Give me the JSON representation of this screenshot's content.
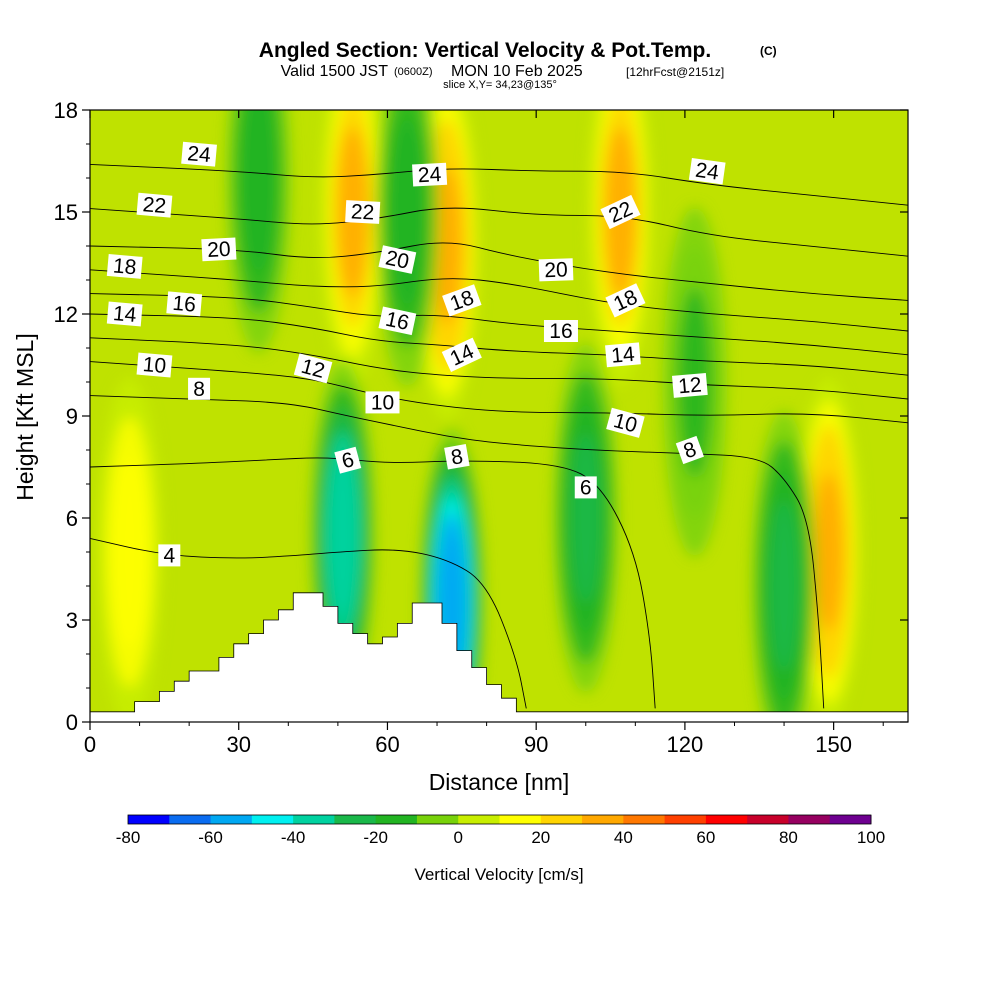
{
  "chart_data": {
    "type": "heatmap",
    "title": "Angled Section: Vertical Velocity & Pot.Temp.",
    "title_unit": "(C)",
    "subtitle_valid": "Valid 1500 JST",
    "subtitle_utc": "(0600Z)",
    "subtitle_date": "MON 10 Feb 2025",
    "subtitle_fcst": "[12hrFcst@2151z]",
    "slice_info": "slice X,Y= 34,23@135°",
    "xlabel": "Distance [nm]",
    "ylabel": "Height [Kft MSL]",
    "xlim": [
      0,
      165
    ],
    "ylim": [
      0,
      18
    ],
    "x_ticks": [
      0,
      30,
      60,
      90,
      120,
      150
    ],
    "y_ticks": [
      0,
      3,
      6,
      9,
      12,
      15,
      18
    ],
    "x_tick_labels": [
      "0",
      "30",
      "60",
      "90",
      "120",
      "150"
    ],
    "y_tick_labels": [
      "0",
      "3",
      "6",
      "9",
      "12",
      "15",
      "18"
    ],
    "colorbar": {
      "title": "Vertical Velocity [cm/s]",
      "levels": [
        -80,
        -70,
        -60,
        -50,
        -40,
        -30,
        -20,
        -10,
        0,
        10,
        20,
        30,
        40,
        50,
        60,
        70,
        80,
        90,
        100
      ],
      "tick_values": [
        -80,
        -60,
        -40,
        -20,
        0,
        20,
        40,
        60,
        80,
        100
      ],
      "tick_labels": [
        "-80",
        "-60",
        "-40",
        "-20",
        "0",
        "20",
        "40",
        "60",
        "80",
        "100"
      ],
      "colors": [
        "#0000ff",
        "#0a6cf0",
        "#00a8f2",
        "#00f0f0",
        "#00d2a0",
        "#1ab84a",
        "#22b422",
        "#78d20a",
        "#c8ee00",
        "#ffff00",
        "#ffd400",
        "#ffa800",
        "#ff7800",
        "#ff4000",
        "#ff0000",
        "#c8002a",
        "#960060",
        "#6e0090"
      ]
    },
    "velocity_features": [
      {
        "kind": "updraft",
        "x": 8,
        "y": 5,
        "value": 15
      },
      {
        "kind": "updraft",
        "x": 53,
        "y": 15,
        "value": 30
      },
      {
        "kind": "updraft",
        "x": 72,
        "y": 14,
        "value": 35
      },
      {
        "kind": "updraft",
        "x": 107,
        "y": 15,
        "value": 30
      },
      {
        "kind": "updraft",
        "x": 149,
        "y": 5,
        "value": 35
      },
      {
        "kind": "downdraft",
        "x": 34,
        "y": 16,
        "value": -20
      },
      {
        "kind": "downdraft",
        "x": 51,
        "y": 5.5,
        "value": -40
      },
      {
        "kind": "downdraft",
        "x": 73,
        "y": 3.5,
        "value": -60
      },
      {
        "kind": "downdraft",
        "x": 64,
        "y": 15,
        "value": -20
      },
      {
        "kind": "downdraft",
        "x": 100,
        "y": 6,
        "value": -25
      },
      {
        "kind": "downdraft",
        "x": 122,
        "y": 10,
        "value": -15
      },
      {
        "kind": "downdraft",
        "x": 140,
        "y": 4,
        "value": -25
      }
    ],
    "terrain": [
      [
        0,
        0.3
      ],
      [
        9,
        0.3
      ],
      [
        9,
        0.6
      ],
      [
        14,
        0.6
      ],
      [
        14,
        0.9
      ],
      [
        17,
        0.9
      ],
      [
        17,
        1.2
      ],
      [
        20,
        1.2
      ],
      [
        20,
        1.5
      ],
      [
        26,
        1.5
      ],
      [
        26,
        1.9
      ],
      [
        29,
        1.9
      ],
      [
        29,
        2.3
      ],
      [
        32,
        2.3
      ],
      [
        32,
        2.6
      ],
      [
        35,
        2.6
      ],
      [
        35,
        3.0
      ],
      [
        38,
        3.0
      ],
      [
        38,
        3.3
      ],
      [
        41,
        3.3
      ],
      [
        41,
        3.8
      ],
      [
        47,
        3.8
      ],
      [
        47,
        3.4
      ],
      [
        50,
        3.4
      ],
      [
        50,
        2.9
      ],
      [
        53,
        2.9
      ],
      [
        53,
        2.6
      ],
      [
        56,
        2.6
      ],
      [
        56,
        2.3
      ],
      [
        59,
        2.3
      ],
      [
        59,
        2.5
      ],
      [
        62,
        2.5
      ],
      [
        62,
        2.9
      ],
      [
        65,
        2.9
      ],
      [
        65,
        3.5
      ],
      [
        71,
        3.5
      ],
      [
        71,
        2.9
      ],
      [
        74,
        2.9
      ],
      [
        74,
        2.1
      ],
      [
        77,
        2.1
      ],
      [
        77,
        1.6
      ],
      [
        80,
        1.6
      ],
      [
        80,
        1.1
      ],
      [
        83,
        1.1
      ],
      [
        83,
        0.7
      ],
      [
        86,
        0.7
      ],
      [
        86,
        0.3
      ],
      [
        165,
        0.3
      ]
    ],
    "theta_isentropes": [
      {
        "value": 4,
        "points": [
          [
            0,
            5.4
          ],
          [
            15,
            4.9
          ],
          [
            30,
            4.8
          ],
          [
            42,
            4.9
          ],
          [
            50,
            5.0
          ],
          [
            62,
            5.1
          ],
          [
            72,
            4.8
          ],
          [
            80,
            4.1
          ],
          [
            86,
            1.9
          ],
          [
            88,
            0.4
          ]
        ]
      },
      {
        "value": 6,
        "points": [
          [
            0,
            7.5
          ],
          [
            20,
            7.6
          ],
          [
            35,
            7.7
          ],
          [
            48,
            7.8
          ],
          [
            60,
            7.6
          ],
          [
            75,
            7.7
          ],
          [
            95,
            7.6
          ],
          [
            103,
            7.0
          ],
          [
            110,
            5.0
          ],
          [
            113,
            2.5
          ],
          [
            114,
            0.4
          ]
        ]
      },
      {
        "value": 8,
        "points": [
          [
            0,
            9.6
          ],
          [
            20,
            9.5
          ],
          [
            40,
            9.4
          ],
          [
            52,
            9.0
          ],
          [
            62,
            8.7
          ],
          [
            72,
            8.4
          ],
          [
            82,
            8.2
          ],
          [
            100,
            8.0
          ],
          [
            120,
            7.9
          ],
          [
            135,
            7.8
          ],
          [
            140,
            7.2
          ],
          [
            145,
            6.0
          ],
          [
            147,
            3.0
          ],
          [
            148,
            0.4
          ]
        ]
      },
      {
        "value": 10,
        "points": [
          [
            0,
            10.6
          ],
          [
            30,
            10.3
          ],
          [
            45,
            10.1
          ],
          [
            58,
            9.6
          ],
          [
            70,
            9.3
          ],
          [
            85,
            9.1
          ],
          [
            105,
            9.1
          ],
          [
            125,
            9.0
          ],
          [
            145,
            9.1
          ],
          [
            165,
            8.8
          ]
        ]
      },
      {
        "value": 12,
        "points": [
          [
            0,
            11.3
          ],
          [
            30,
            11.1
          ],
          [
            45,
            10.8
          ],
          [
            58,
            10.4
          ],
          [
            70,
            10.2
          ],
          [
            85,
            10.1
          ],
          [
            105,
            10.1
          ],
          [
            125,
            9.9
          ],
          [
            145,
            9.8
          ],
          [
            165,
            9.5
          ]
        ]
      },
      {
        "value": 14,
        "points": [
          [
            0,
            12.0
          ],
          [
            30,
            11.9
          ],
          [
            45,
            11.6
          ],
          [
            58,
            11.2
          ],
          [
            70,
            11.1
          ],
          [
            85,
            10.9
          ],
          [
            105,
            10.8
          ],
          [
            125,
            10.6
          ],
          [
            145,
            10.5
          ],
          [
            165,
            10.2
          ]
        ]
      },
      {
        "value": 16,
        "points": [
          [
            0,
            12.6
          ],
          [
            30,
            12.5
          ],
          [
            45,
            12.2
          ],
          [
            58,
            11.9
          ],
          [
            70,
            12.0
          ],
          [
            85,
            11.7
          ],
          [
            105,
            11.5
          ],
          [
            125,
            11.3
          ],
          [
            145,
            11.1
          ],
          [
            165,
            10.8
          ]
        ]
      },
      {
        "value": 18,
        "points": [
          [
            0,
            13.3
          ],
          [
            30,
            13.0
          ],
          [
            45,
            12.8
          ],
          [
            58,
            12.8
          ],
          [
            72,
            13.1
          ],
          [
            85,
            12.9
          ],
          [
            105,
            12.3
          ],
          [
            125,
            12.0
          ],
          [
            145,
            11.8
          ],
          [
            165,
            11.5
          ]
        ]
      },
      {
        "value": 20,
        "points": [
          [
            0,
            14.0
          ],
          [
            30,
            13.9
          ],
          [
            45,
            13.6
          ],
          [
            58,
            13.8
          ],
          [
            72,
            14.2
          ],
          [
            85,
            13.7
          ],
          [
            105,
            13.2
          ],
          [
            125,
            12.9
          ],
          [
            145,
            12.6
          ],
          [
            165,
            12.4
          ]
        ]
      },
      {
        "value": 22,
        "points": [
          [
            0,
            15.1
          ],
          [
            30,
            14.8
          ],
          [
            45,
            14.6
          ],
          [
            58,
            14.8
          ],
          [
            72,
            15.2
          ],
          [
            90,
            14.9
          ],
          [
            108,
            14.9
          ],
          [
            125,
            14.3
          ],
          [
            145,
            14.0
          ],
          [
            165,
            13.7
          ]
        ]
      },
      {
        "value": 24,
        "points": [
          [
            0,
            16.4
          ],
          [
            30,
            16.2
          ],
          [
            45,
            16.0
          ],
          [
            58,
            16.1
          ],
          [
            72,
            16.3
          ],
          [
            90,
            16.2
          ],
          [
            108,
            16.2
          ],
          [
            125,
            15.8
          ],
          [
            145,
            15.5
          ],
          [
            165,
            15.2
          ]
        ]
      }
    ],
    "contour_labels": [
      {
        "text": "24",
        "x": 22,
        "y": 16.7,
        "rot": 5
      },
      {
        "text": "24",
        "x": 68.5,
        "y": 16.1,
        "rot": -3
      },
      {
        "text": "24",
        "x": 124.5,
        "y": 16.2,
        "rot": 8
      },
      {
        "text": "22",
        "x": 13,
        "y": 15.2,
        "rot": 5
      },
      {
        "text": "22",
        "x": 55,
        "y": 15.0,
        "rot": 3
      },
      {
        "text": "22",
        "x": 107,
        "y": 15.0,
        "rot": -25
      },
      {
        "text": "20",
        "x": 26,
        "y": 13.9,
        "rot": -3
      },
      {
        "text": "20",
        "x": 62,
        "y": 13.6,
        "rot": 12
      },
      {
        "text": "20",
        "x": 94,
        "y": 13.3,
        "rot": -2
      },
      {
        "text": "18",
        "x": 7,
        "y": 13.4,
        "rot": 5
      },
      {
        "text": "18",
        "x": 75,
        "y": 12.4,
        "rot": -20
      },
      {
        "text": "18",
        "x": 108,
        "y": 12.4,
        "rot": -25
      },
      {
        "text": "16",
        "x": 19,
        "y": 12.3,
        "rot": 5
      },
      {
        "text": "16",
        "x": 62,
        "y": 11.8,
        "rot": 12
      },
      {
        "text": "16",
        "x": 95,
        "y": 11.5,
        "rot": 0
      },
      {
        "text": "14",
        "x": 7,
        "y": 12.0,
        "rot": 5
      },
      {
        "text": "14",
        "x": 75,
        "y": 10.8,
        "rot": -25
      },
      {
        "text": "14",
        "x": 107.5,
        "y": 10.8,
        "rot": -5
      },
      {
        "text": "12",
        "x": 45,
        "y": 10.4,
        "rot": 15
      },
      {
        "text": "12",
        "x": 121,
        "y": 9.9,
        "rot": -5
      },
      {
        "text": "10",
        "x": 13,
        "y": 10.5,
        "rot": 5
      },
      {
        "text": "10",
        "x": 59,
        "y": 9.4,
        "rot": 0
      },
      {
        "text": "10",
        "x": 108,
        "y": 8.8,
        "rot": 15
      },
      {
        "text": "8",
        "x": 22,
        "y": 9.8,
        "rot": 0
      },
      {
        "text": "8",
        "x": 74,
        "y": 7.8,
        "rot": -10
      },
      {
        "text": "8",
        "x": 121,
        "y": 8.0,
        "rot": -20
      },
      {
        "text": "6",
        "x": 52,
        "y": 7.7,
        "rot": -15
      },
      {
        "text": "6",
        "x": 100,
        "y": 6.9,
        "rot": 0
      },
      {
        "text": "4",
        "x": 16,
        "y": 4.9,
        "rot": 0
      }
    ]
  }
}
